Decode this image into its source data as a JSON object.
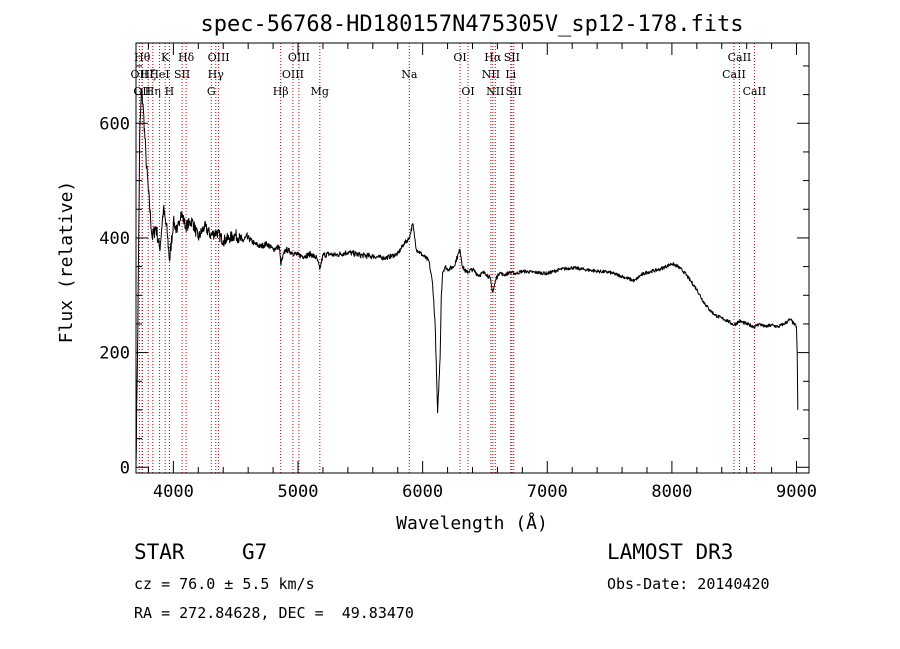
{
  "chart_data": {
    "type": "line",
    "title": "spec-56768-HD180157N475305V_sp12-178.fits",
    "xlabel": "Wavelength (Å)",
    "ylabel": "Flux (relative)",
    "xlim": [
      3700,
      9100
    ],
    "ylim": [
      -10,
      740
    ],
    "xticks": [
      4000,
      5000,
      6000,
      7000,
      8000,
      9000
    ],
    "yticks": [
      0,
      200,
      400,
      600
    ],
    "grid": false,
    "series": [
      {
        "name": "flux",
        "x": [
          3700,
          3715,
          3730,
          3745,
          3760,
          3780,
          3800,
          3830,
          3860,
          3890,
          3920,
          3950,
          3970,
          4000,
          4030,
          4060,
          4100,
          4150,
          4200,
          4250,
          4300,
          4350,
          4400,
          4450,
          4500,
          4550,
          4600,
          4650,
          4700,
          4750,
          4800,
          4850,
          4861,
          4900,
          4950,
          5000,
          5050,
          5100,
          5150,
          5175,
          5200,
          5250,
          5300,
          5400,
          5500,
          5600,
          5700,
          5800,
          5850,
          5893,
          5920,
          5950,
          6000,
          6050,
          6080,
          6100,
          6120,
          6140,
          6150,
          6160,
          6180,
          6200,
          6250,
          6300,
          6320,
          6350,
          6400,
          6450,
          6500,
          6540,
          6563,
          6590,
          6620,
          6650,
          6700,
          6750,
          6800,
          6900,
          7000,
          7100,
          7200,
          7300,
          7400,
          7500,
          7600,
          7700,
          7750,
          7800,
          7900,
          8000,
          8050,
          8100,
          8150,
          8200,
          8250,
          8300,
          8350,
          8400,
          8450,
          8498,
          8542,
          8600,
          8662,
          8700,
          8750,
          8800,
          8850,
          8900,
          8950,
          8980,
          9000,
          9005,
          9010
        ],
        "values": [
          0,
          250,
          580,
          660,
          620,
          540,
          480,
          400,
          420,
          380,
          450,
          410,
          360,
          430,
          410,
          445,
          420,
          430,
          400,
          420,
          405,
          410,
          395,
          400,
          405,
          395,
          400,
          390,
          385,
          390,
          380,
          385,
          355,
          380,
          375,
          370,
          368,
          372,
          365,
          345,
          370,
          372,
          370,
          375,
          370,
          368,
          365,
          372,
          390,
          400,
          425,
          380,
          370,
          360,
          320,
          250,
          95,
          190,
          300,
          340,
          350,
          345,
          350,
          380,
          350,
          340,
          345,
          335,
          340,
          330,
          305,
          330,
          340,
          335,
          340,
          338,
          342,
          340,
          338,
          345,
          348,
          345,
          342,
          340,
          333,
          325,
          335,
          340,
          345,
          355,
          350,
          340,
          325,
          310,
          290,
          275,
          265,
          260,
          255,
          248,
          255,
          250,
          245,
          250,
          245,
          248,
          245,
          250,
          258,
          250,
          245,
          200,
          100
        ]
      }
    ],
    "line_markers": [
      {
        "wl": 3727,
        "label": "OII",
        "row": 1
      },
      {
        "wl": 3750,
        "label": "Hθ",
        "row": 0
      },
      {
        "wl": 3750,
        "label": "OII",
        "row": 2
      },
      {
        "wl": 3798,
        "label": "Hζ",
        "row": 1
      },
      {
        "wl": 3835,
        "label": "Hη",
        "row": 2
      },
      {
        "wl": 3889,
        "label": "HeI",
        "row": 1
      },
      {
        "wl": 3934,
        "label": "K",
        "row": 0
      },
      {
        "wl": 3968,
        "label": "H",
        "row": 2
      },
      {
        "wl": 4070,
        "label": "SII",
        "row": 1
      },
      {
        "wl": 4102,
        "label": "Hδ",
        "row": 0
      },
      {
        "wl": 4304,
        "label": "G",
        "row": 2
      },
      {
        "wl": 4340,
        "label": "Hγ",
        "row": 1
      },
      {
        "wl": 4363,
        "label": "OIII",
        "row": 0
      },
      {
        "wl": 4861,
        "label": "Hβ",
        "row": 2
      },
      {
        "wl": 4959,
        "label": "OIII",
        "row": 1
      },
      {
        "wl": 5007,
        "label": "OIII",
        "row": 0
      },
      {
        "wl": 5175,
        "label": "Mg",
        "row": 2
      },
      {
        "wl": 5893,
        "label": "Na",
        "row": 1
      },
      {
        "wl": 6300,
        "label": "OI",
        "row": 0
      },
      {
        "wl": 6364,
        "label": "OI",
        "row": 2
      },
      {
        "wl": 6548,
        "label": "NII",
        "row": 1
      },
      {
        "wl": 6563,
        "label": "Hα",
        "row": 0
      },
      {
        "wl": 6583,
        "label": "NII",
        "row": 2
      },
      {
        "wl": 6707,
        "label": "Li",
        "row": 1
      },
      {
        "wl": 6716,
        "label": "SII",
        "row": 0
      },
      {
        "wl": 6731,
        "label": "SII",
        "row": 2
      },
      {
        "wl": 8498,
        "label": "CaII",
        "row": 1
      },
      {
        "wl": 8542,
        "label": "CaII",
        "row": 0
      },
      {
        "wl": 8662,
        "label": "CaII",
        "row": 2
      }
    ]
  },
  "info": {
    "class_label": "STAR",
    "subclass": "G7",
    "survey": "LAMOST DR3",
    "redshift_line": "cz = 76.0 ± 5.5 km/s",
    "obs_date": "Obs-Date: 20140420",
    "coords": "RA = 272.84628, DEC =  49.83470"
  }
}
